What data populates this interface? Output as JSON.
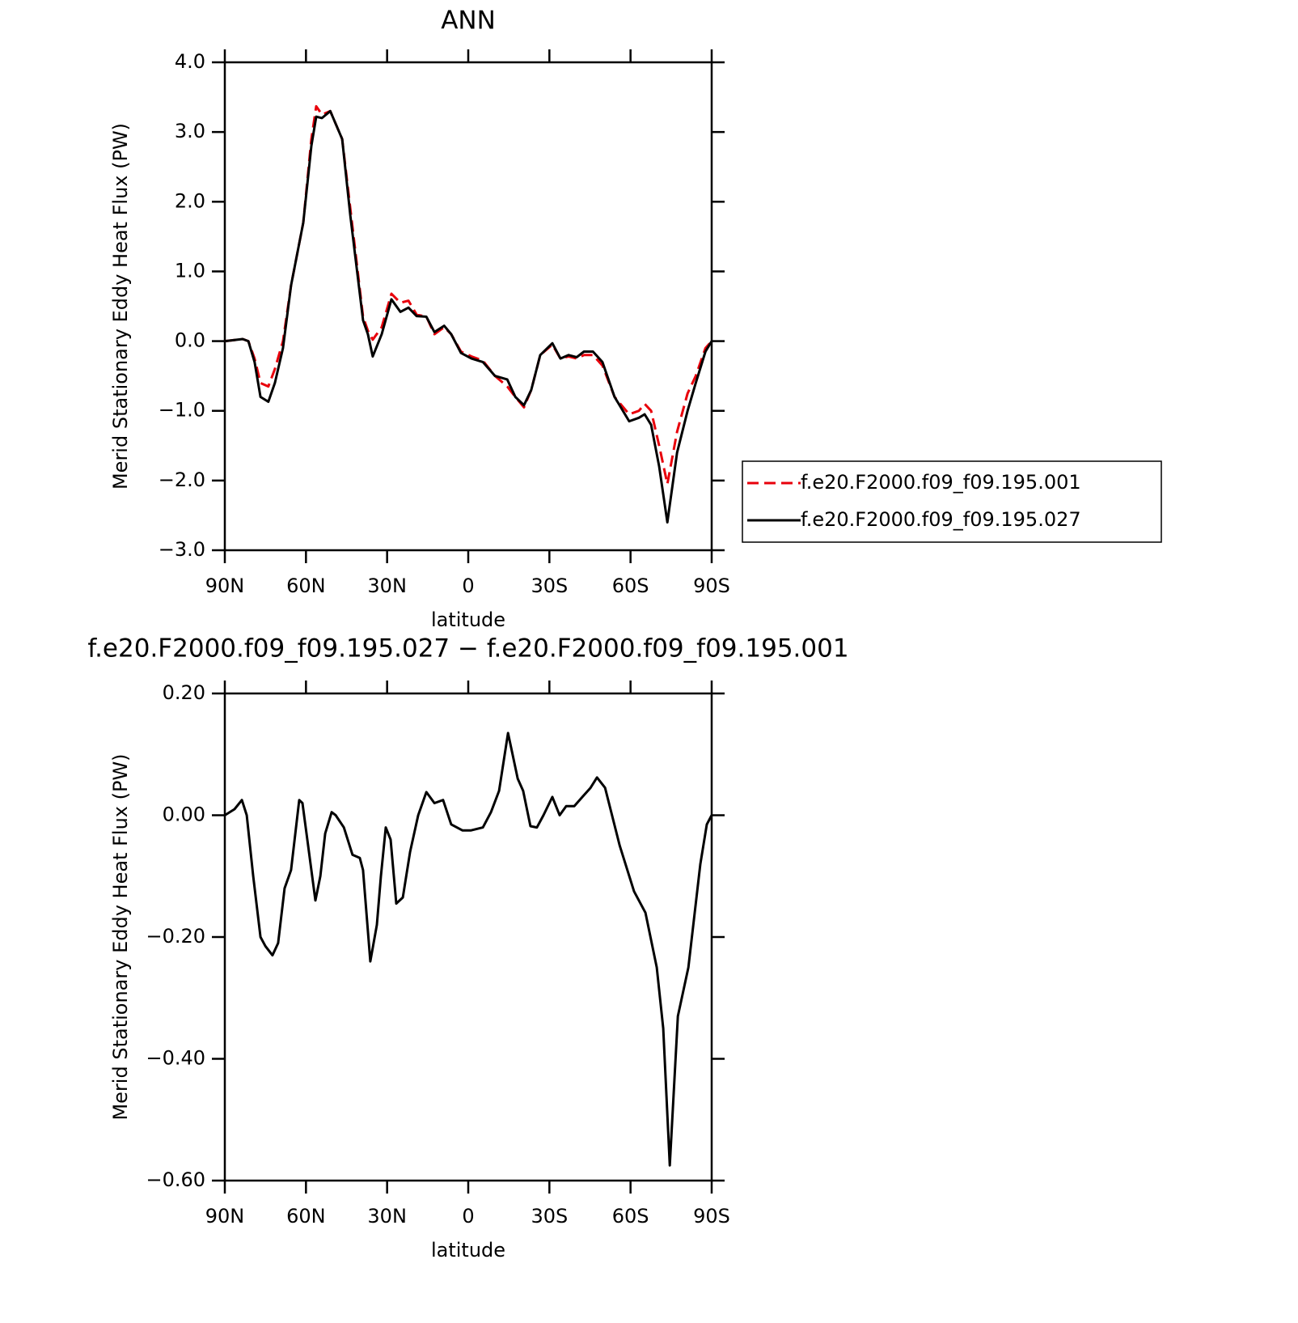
{
  "chart_data": [
    {
      "type": "line",
      "title": "ANN",
      "xlabel": "latitude",
      "ylabel": "Merid Stationary Eddy Heat Flux (PW)",
      "x": [
        90,
        83.4,
        81.3,
        79,
        76.8,
        73.9,
        71.5,
        68.5,
        65.5,
        61,
        58,
        56.2,
        54.1,
        51,
        46.6,
        43.6,
        38.9,
        37.1,
        35.3,
        32,
        28.4,
        25.1,
        22.1,
        19.1,
        15.5,
        12.5,
        8.9,
        6.3,
        2.7,
        -1.2,
        -5.4,
        -9.9,
        -14.4,
        -17.4,
        -20.6,
        -23.3,
        -26.6,
        -31.1,
        -34.1,
        -37.1,
        -40.1,
        -42.8,
        -46.1,
        -49.6,
        -54.1,
        -59.5,
        -63.1,
        -65.2,
        -67.6,
        -70.6,
        -73.6,
        -77.2,
        -81.1,
        -84.1,
        -87.7,
        -90
      ],
      "series": [
        {
          "name": "f.e20.F2000.f09_f09.195.001",
          "color": "#e8000b",
          "linestyle": "dashed",
          "values": [
            0,
            0.03,
            0.0,
            -0.25,
            -0.6,
            -0.65,
            -0.4,
            0.0,
            0.8,
            1.7,
            2.9,
            3.37,
            3.25,
            3.3,
            2.9,
            1.9,
            0.35,
            0.15,
            0.02,
            0.2,
            0.68,
            0.55,
            0.58,
            0.38,
            0.35,
            0.1,
            0.2,
            0.1,
            -0.15,
            -0.22,
            -0.28,
            -0.5,
            -0.65,
            -0.8,
            -0.95,
            -0.7,
            -0.2,
            -0.05,
            -0.25,
            -0.22,
            -0.25,
            -0.2,
            -0.2,
            -0.35,
            -0.8,
            -1.05,
            -1.0,
            -0.9,
            -1.0,
            -1.5,
            -2.05,
            -1.3,
            -0.75,
            -0.5,
            -0.1,
            0
          ]
        },
        {
          "name": "f.e20.F2000.f09_f09.195.027",
          "color": "#000000",
          "linestyle": "solid",
          "values": [
            0,
            0.03,
            0.0,
            -0.3,
            -0.8,
            -0.87,
            -0.6,
            -0.1,
            0.8,
            1.7,
            2.8,
            3.22,
            3.2,
            3.3,
            2.9,
            1.8,
            0.3,
            0.1,
            -0.22,
            0.1,
            0.6,
            0.42,
            0.48,
            0.36,
            0.35,
            0.13,
            0.22,
            0.1,
            -0.17,
            -0.25,
            -0.3,
            -0.5,
            -0.55,
            -0.8,
            -0.92,
            -0.7,
            -0.2,
            -0.03,
            -0.25,
            -0.2,
            -0.23,
            -0.15,
            -0.15,
            -0.3,
            -0.8,
            -1.15,
            -1.1,
            -1.05,
            -1.2,
            -1.8,
            -2.6,
            -1.6,
            -1.0,
            -0.6,
            -0.15,
            0
          ]
        }
      ],
      "xlim": [
        90,
        -90
      ],
      "xticks": [
        {
          "value": 90,
          "label": "90N"
        },
        {
          "value": 60,
          "label": "60N"
        },
        {
          "value": 30,
          "label": "30N"
        },
        0,
        {
          "value": -30,
          "label": "30S"
        },
        {
          "value": -60,
          "label": "60S"
        },
        {
          "value": -90,
          "label": "90S"
        }
      ],
      "ylim": [
        -3,
        4
      ],
      "yticks": [
        {
          "value": 4,
          "label": "4.0"
        },
        {
          "value": 3,
          "label": "3.0"
        },
        {
          "value": 2,
          "label": "2.0"
        },
        {
          "value": 1,
          "label": "1.0"
        },
        {
          "value": 0,
          "label": "0.0"
        },
        {
          "value": -1,
          "label": "−1.0"
        },
        {
          "value": -2,
          "label": "−2.0"
        },
        {
          "value": -3,
          "label": "−3.0"
        }
      ],
      "legend": "outside-right"
    },
    {
      "type": "line",
      "title": "f.e20.F2000.f09_f09.195.027 − f.e20.F2000.f09_f09.195.001",
      "xlabel": "latitude",
      "ylabel": "Merid Stationary Eddy Heat Flux (PW)",
      "x": [
        90,
        86.4,
        83.7,
        81.9,
        79.5,
        76.8,
        75,
        72.4,
        70.3,
        67.9,
        65.5,
        62.5,
        61.3,
        59.2,
        56.5,
        54.7,
        52.9,
        50.5,
        49,
        46,
        42.8,
        40.1,
        38.9,
        36.2,
        33.8,
        32.3,
        30.5,
        28.7,
        26.6,
        24.2,
        21.5,
        18.5,
        15.5,
        12.5,
        9.3,
        6.3,
        2.1,
        -0.9,
        -5.4,
        -8.4,
        -11.4,
        -14.7,
        -18.3,
        -20.3,
        -23,
        -25.4,
        -27.8,
        -31.1,
        -33.8,
        -36.2,
        -39.2,
        -42.2,
        -45.2,
        -47.6,
        -50.6,
        -56,
        -61.3,
        -65.5,
        -69.7,
        -72.1,
        -74.5,
        -77.5,
        -81.4,
        -85.8,
        -88.2,
        -90
      ],
      "values": [
        0,
        0.01,
        0.025,
        0.0,
        -0.1,
        -0.2,
        -0.215,
        -0.23,
        -0.21,
        -0.12,
        -0.09,
        0.025,
        0.02,
        -0.05,
        -0.14,
        -0.1,
        -0.03,
        0.005,
        0.0,
        -0.02,
        -0.065,
        -0.07,
        -0.09,
        -0.24,
        -0.18,
        -0.1,
        -0.02,
        -0.04,
        -0.145,
        -0.135,
        -0.06,
        0.0,
        0.038,
        0.02,
        0.025,
        -0.015,
        -0.025,
        -0.025,
        -0.02,
        0.005,
        0.04,
        0.135,
        0.06,
        0.04,
        -0.018,
        -0.02,
        0.0,
        0.03,
        0.0,
        0.015,
        0.015,
        0.03,
        0.045,
        0.062,
        0.045,
        -0.05,
        -0.125,
        -0.16,
        -0.25,
        -0.35,
        -0.575,
        -0.33,
        -0.25,
        -0.08,
        -0.015,
        0
      ],
      "color": "#000000",
      "xlim": [
        90,
        -90
      ],
      "xticks": [
        {
          "value": 90,
          "label": "90N"
        },
        {
          "value": 60,
          "label": "60N"
        },
        {
          "value": 30,
          "label": "30N"
        },
        0,
        {
          "value": -30,
          "label": "30S"
        },
        {
          "value": -60,
          "label": "60S"
        },
        {
          "value": -90,
          "label": "90S"
        }
      ],
      "ylim": [
        -0.6,
        0.2
      ],
      "yticks": [
        {
          "value": 0.2,
          "label": "0.20"
        },
        {
          "value": 0,
          "label": "0.00"
        },
        {
          "value": -0.2,
          "label": "−0.20"
        },
        {
          "value": -0.4,
          "label": "−0.40"
        },
        {
          "value": -0.6,
          "label": "−0.60"
        }
      ]
    }
  ]
}
